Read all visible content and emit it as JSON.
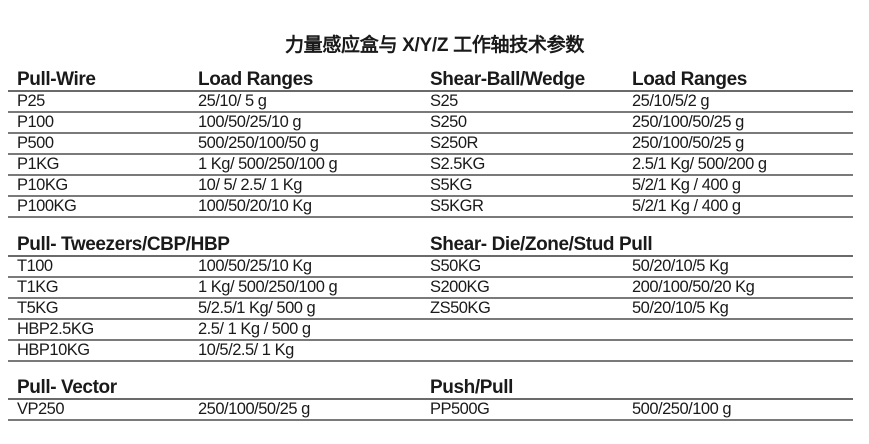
{
  "title": "力量感应盒与 X/Y/Z 工作轴技术参数",
  "sections": [
    {
      "headers": [
        "Pull-Wire",
        "Load Ranges",
        "Shear-Ball/Wedge",
        "Load Ranges"
      ],
      "rows": [
        [
          "P25",
          "25/10/ 5 g",
          "S25",
          "25/10/5/2 g"
        ],
        [
          "P100",
          "100/50/25/10 g",
          "S250",
          "250/100/50/25 g"
        ],
        [
          "P500",
          "500/250/100/50 g",
          "S250R",
          "250/100/50/25 g"
        ],
        [
          "P1KG",
          "1 Kg/ 500/250/100 g",
          "S2.5KG",
          "2.5/1 Kg/ 500/200 g"
        ],
        [
          "P10KG",
          "10/ 5/ 2.5/ 1 Kg",
          "S5KG",
          "5/2/1 Kg / 400 g"
        ],
        [
          "P100KG",
          "100/50/20/10 Kg",
          "S5KGR",
          "5/2/1 Kg / 400 g"
        ]
      ]
    },
    {
      "headers": [
        "Pull- Tweezers/CBP/HBP",
        "",
        "Shear- Die/Zone/Stud Pull",
        ""
      ],
      "rows": [
        [
          "T100",
          "100/50/25/10 Kg",
          "S50KG",
          "50/20/10/5 Kg"
        ],
        [
          "T1KG",
          "1 Kg/ 500/250/100 g",
          "S200KG",
          "200/100/50/20 Kg"
        ],
        [
          "T5KG",
          "5/2.5/1 Kg/ 500 g",
          "ZS50KG",
          "50/20/10/5 Kg"
        ],
        [
          "HBP2.5KG",
          "2.5/ 1 Kg / 500 g",
          "",
          ""
        ],
        [
          "HBP10KG",
          "10/5/2.5/ 1 Kg",
          "",
          ""
        ]
      ]
    },
    {
      "headers": [
        "Pull- Vector",
        "",
        "Push/Pull",
        ""
      ],
      "rows": [
        [
          "VP250",
          "250/100/50/25 g",
          "PP500G",
          "500/250/100 g"
        ]
      ]
    }
  ]
}
